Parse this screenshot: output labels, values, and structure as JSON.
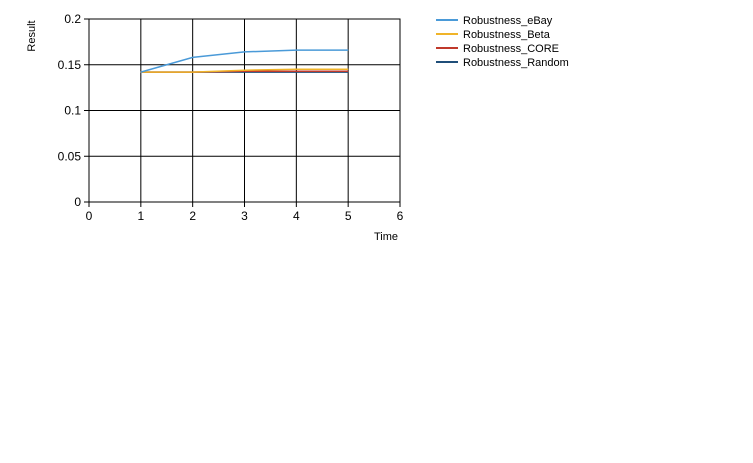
{
  "chart_data": {
    "type": "line",
    "xlabel": "Time",
    "ylabel": "Result",
    "xlim": [
      0,
      6
    ],
    "ylim": [
      0,
      0.2
    ],
    "xticks": [
      "0",
      "1",
      "2",
      "3",
      "4",
      "5",
      "6"
    ],
    "yticks": [
      "0",
      "0.05",
      "0.1",
      "0.15",
      "0.2"
    ],
    "grid": true,
    "legend_position": "right",
    "x": [
      1,
      2,
      3,
      4,
      5
    ],
    "series": [
      {
        "name": "Robustness_eBay",
        "color": "#4a9ad8",
        "values": [
          0.142,
          0.158,
          0.164,
          0.166,
          0.166
        ]
      },
      {
        "name": "Robustness_Beta",
        "color": "#f0b429",
        "values": [
          0.142,
          0.142,
          0.144,
          0.145,
          0.145
        ]
      },
      {
        "name": "Robustness_CORE",
        "color": "#c0392b",
        "values": [
          0.142,
          0.142,
          0.143,
          0.143,
          0.143
        ]
      },
      {
        "name": "Robustness_Random",
        "color": "#1f4e79",
        "values": [
          0.142,
          0.142,
          0.142,
          0.142,
          0.142
        ]
      }
    ]
  }
}
